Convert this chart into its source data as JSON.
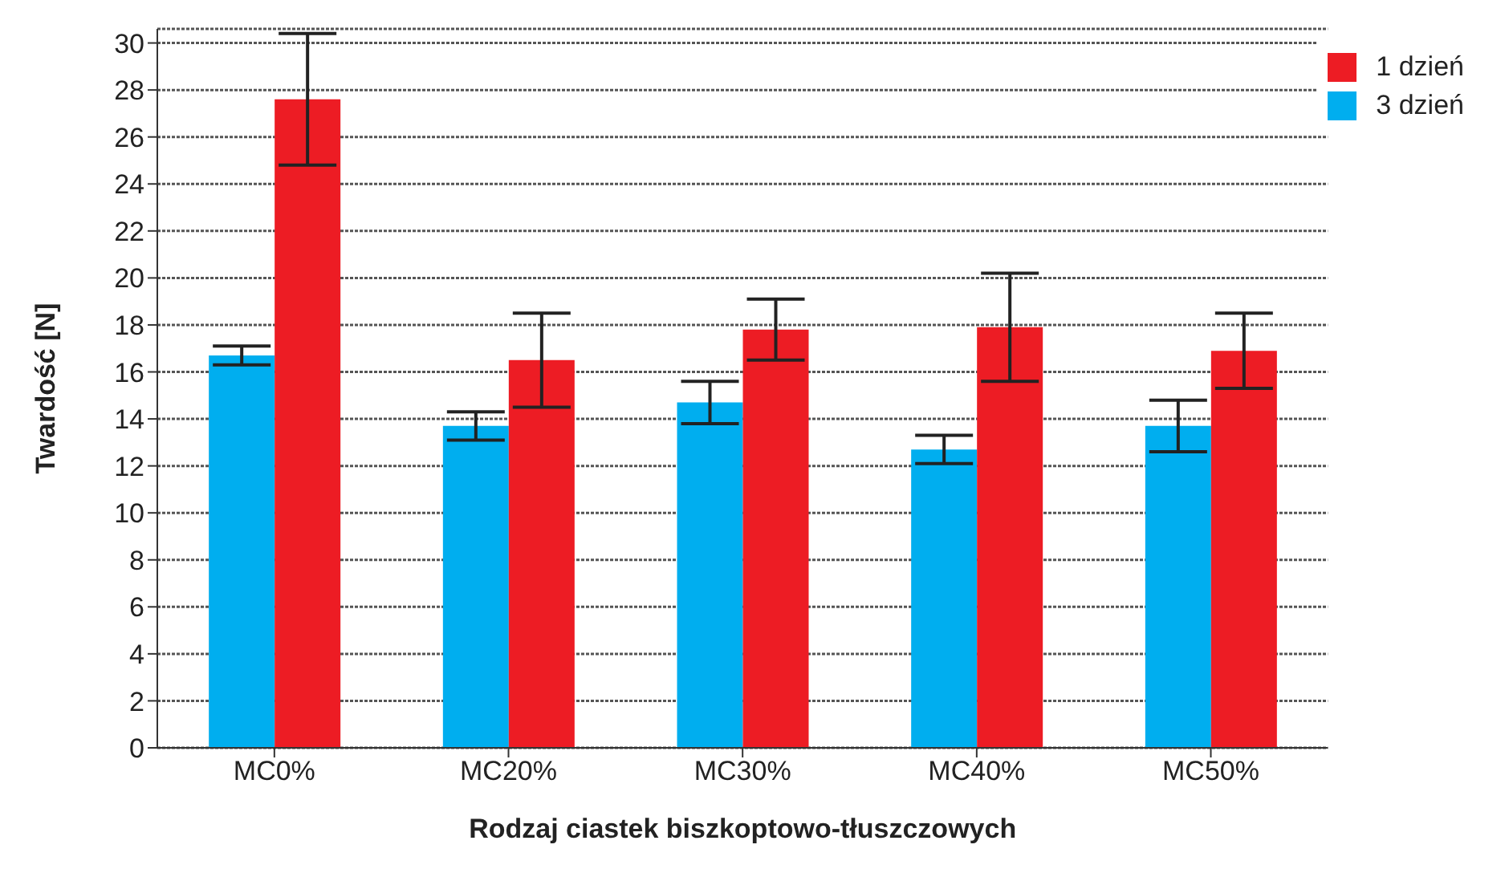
{
  "chart_data": {
    "type": "bar",
    "xlabel": "Rodzaj ciastek biszkoptowo-tłuszczowych",
    "ylabel": "Twardość [N]",
    "categories": [
      "MC0%",
      "MC20%",
      "MC30%",
      "MC40%",
      "MC50%"
    ],
    "series": [
      {
        "name": "3 dzień",
        "color": "#00aeef",
        "values": [
          16.7,
          13.7,
          14.7,
          12.7,
          13.7
        ],
        "errors": [
          0.4,
          0.6,
          0.9,
          0.6,
          1.1
        ]
      },
      {
        "name": "1 dzień",
        "color": "#ed1c24",
        "values": [
          27.6,
          16.5,
          17.8,
          17.9,
          16.9
        ],
        "errors": [
          2.8,
          2.0,
          1.3,
          2.3,
          1.6
        ]
      }
    ],
    "ylim": [
      0,
      30.6
    ],
    "yticks": [
      0,
      2,
      4,
      6,
      8,
      10,
      12,
      14,
      16,
      18,
      20,
      22,
      24,
      26,
      28,
      30
    ],
    "grid": "y",
    "legend": "top right"
  }
}
